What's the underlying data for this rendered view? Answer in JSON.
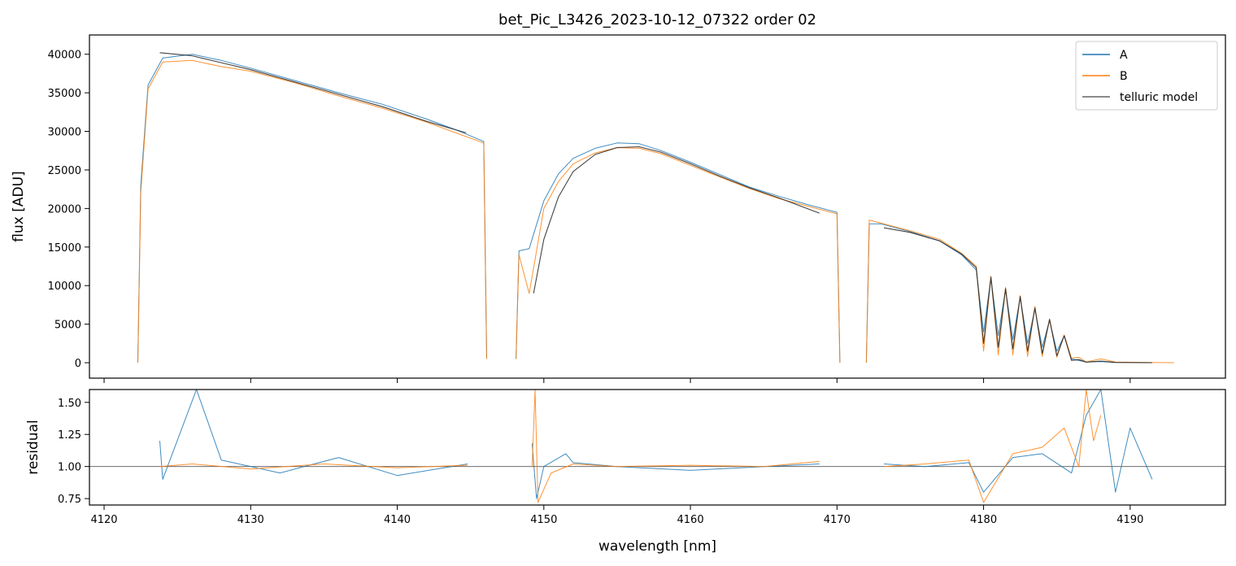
{
  "chart_data": [
    {
      "type": "line",
      "title": "bet_Pic_L3426_2023-10-12_07322  order 02",
      "ylabel": "flux [ADU]",
      "xlabel": "",
      "xlim": [
        4119.0,
        4196.5
      ],
      "ylim": [
        -2000,
        42500
      ],
      "xticks": [
        4120,
        4130,
        4140,
        4150,
        4160,
        4170,
        4180,
        4190
      ],
      "yticks": [
        0,
        5000,
        10000,
        15000,
        20000,
        25000,
        30000,
        35000,
        40000
      ],
      "ytick_labels": [
        "0",
        "5000",
        "10000",
        "15000",
        "20000",
        "25000",
        "30000",
        "35000",
        "40000"
      ],
      "legend": {
        "placement": "top-right",
        "entries": [
          "A",
          "B",
          "telluric model"
        ]
      },
      "series": [
        {
          "name": "A",
          "color": "#1f77b4",
          "segments": [
            {
              "x": [
                4122.3,
                4122.5,
                4123.0,
                4124.0,
                4126.0,
                4128.0,
                4130.0,
                4133.0,
                4136.0,
                4139.0,
                4142.0,
                4144.0,
                4145.9,
                4146.1
              ],
              "y": [
                0,
                23000,
                36000,
                39500,
                40000,
                39200,
                38200,
                36600,
                35000,
                33500,
                31600,
                30200,
                28700,
                500
              ]
            },
            {
              "x": [
                4148.1,
                4148.3,
                4149.0,
                4150.0,
                4151.0,
                4152.0,
                4153.5,
                4155.0,
                4156.5,
                4158.0,
                4160.0,
                4162.0,
                4164.0,
                4166.0,
                4168.0,
                4170.0,
                4170.2
              ],
              "y": [
                500,
                14500,
                14800,
                21000,
                24500,
                26500,
                27800,
                28500,
                28400,
                27500,
                26000,
                24400,
                22800,
                21600,
                20500,
                19500,
                0
              ]
            },
            {
              "x": [
                4172.0,
                4172.2,
                4173.0,
                4175.0,
                4177.0,
                4178.5,
                4179.5,
                4180.0,
                4180.5,
                4181.0,
                4181.5,
                4182.0,
                4182.5,
                4183.0,
                4183.5,
                4184.0,
                4184.5,
                4185.0,
                4185.5,
                4186.0,
                4186.5,
                4187.0,
                4188.0,
                4189.0,
                4190.0,
                4191.5
              ],
              "y": [
                0,
                18000,
                18000,
                17000,
                15800,
                14000,
                12000,
                4000,
                11000,
                3500,
                9500,
                3000,
                8500,
                2500,
                7000,
                2000,
                5500,
                1500,
                3500,
                500,
                300,
                100,
                150,
                50,
                50,
                0
              ]
            }
          ]
        },
        {
          "name": "B",
          "color": "#ff7f0e",
          "segments": [
            {
              "x": [
                4122.3,
                4122.5,
                4123.0,
                4124.0,
                4126.0,
                4128.0,
                4130.0,
                4133.0,
                4136.0,
                4139.0,
                4142.0,
                4144.0,
                4145.9,
                4146.1
              ],
              "y": [
                0,
                22000,
                35500,
                39000,
                39200,
                38400,
                37800,
                36300,
                34600,
                33000,
                31200,
                29800,
                28500,
                500
              ]
            },
            {
              "x": [
                4148.1,
                4148.3,
                4149.0,
                4150.0,
                4151.0,
                4152.0,
                4153.5,
                4155.0,
                4156.5,
                4158.0,
                4160.0,
                4162.0,
                4164.0,
                4166.0,
                4168.0,
                4170.0,
                4170.2
              ],
              "y": [
                500,
                14000,
                9000,
                20000,
                23500,
                25800,
                27200,
                27900,
                27800,
                27100,
                25600,
                24100,
                22600,
                21300,
                20300,
                19300,
                0
              ]
            },
            {
              "x": [
                4172.0,
                4172.2,
                4173.0,
                4175.0,
                4177.0,
                4178.5,
                4179.5,
                4180.0,
                4180.5,
                4181.0,
                4181.5,
                4182.0,
                4182.5,
                4183.0,
                4183.5,
                4184.0,
                4184.5,
                4185.0,
                4185.5,
                4186.0,
                4186.5,
                4187.0,
                4188.0,
                4189.0,
                4190.0,
                4193.0
              ],
              "y": [
                0,
                18500,
                18100,
                17100,
                16000,
                14200,
                12500,
                1500,
                11200,
                1000,
                9800,
                1000,
                8700,
                800,
                7300,
                800,
                5700,
                700,
                3600,
                600,
                700,
                100,
                500,
                80,
                60,
                0
              ]
            }
          ]
        },
        {
          "name": "telluric model",
          "color": "#222222",
          "segments": [
            {
              "x": [
                4123.8,
                4126.0,
                4128.0,
                4130.0,
                4133.0,
                4136.0,
                4139.0,
                4142.0,
                4144.7
              ],
              "y": [
                40200,
                39800,
                38900,
                38000,
                36400,
                34800,
                33200,
                31300,
                29800
              ]
            },
            {
              "x": [
                4149.3,
                4150.0,
                4151.0,
                4152.0,
                4153.5,
                4155.0,
                4156.5,
                4158.0,
                4160.0,
                4162.0,
                4164.0,
                4166.0,
                4168.8
              ],
              "y": [
                9000,
                16000,
                21500,
                24800,
                27000,
                27900,
                28000,
                27300,
                25800,
                24200,
                22700,
                21400,
                19400
              ]
            },
            {
              "x": [
                4173.2,
                4175.0,
                4177.0,
                4178.5,
                4179.5,
                4180.0,
                4180.5,
                4181.0,
                4181.5,
                4182.0,
                4182.5,
                4183.0,
                4183.5,
                4184.0,
                4184.5,
                4185.0,
                4185.5,
                4186.0,
                4186.5,
                4187.0,
                4188.0,
                4189.0,
                4191.5
              ],
              "y": [
                17500,
                16900,
                15800,
                14100,
                12300,
                2500,
                11100,
                2000,
                9600,
                1800,
                8600,
                1500,
                7100,
                1200,
                5600,
                900,
                3500,
                300,
                400,
                80,
                200,
                40,
                0
              ]
            }
          ]
        }
      ]
    },
    {
      "type": "line",
      "title": "",
      "ylabel": "residual",
      "xlabel": "wavelength [nm]",
      "xlim": [
        4119.0,
        4196.5
      ],
      "ylim": [
        0.7,
        1.6
      ],
      "xticks": [
        4120,
        4130,
        4140,
        4150,
        4160,
        4170,
        4180,
        4190
      ],
      "yticks": [
        0.75,
        1.0,
        1.25,
        1.5
      ],
      "ytick_labels": [
        "0.75",
        "1.00",
        "1.25",
        "1.50"
      ],
      "reference_line": 1.0,
      "series": [
        {
          "name": "A",
          "color": "#1f77b4",
          "segments": [
            {
              "x": [
                4123.8,
                4124.0,
                4126.3,
                4128.0,
                4132.0,
                4136.0,
                4140.0,
                4144.8
              ],
              "y": [
                1.2,
                0.9,
                1.6,
                1.05,
                0.95,
                1.07,
                0.93,
                1.02
              ]
            },
            {
              "x": [
                4149.2,
                4149.5,
                4150.0,
                4151.5,
                4152.0,
                4155.0,
                4160.0,
                4165.0,
                4168.8
              ],
              "y": [
                1.18,
                0.75,
                1.0,
                1.1,
                1.03,
                1.0,
                0.97,
                1.0,
                1.02
              ]
            },
            {
              "x": [
                4173.2,
                4176.0,
                4179.0,
                4180.0,
                4182.0,
                4184.0,
                4186.0,
                4187.0,
                4188.0,
                4189.0,
                4190.0,
                4191.5
              ],
              "y": [
                1.02,
                1.0,
                1.03,
                0.8,
                1.07,
                1.1,
                0.95,
                1.4,
                1.6,
                0.8,
                1.3,
                0.9
              ]
            }
          ]
        },
        {
          "name": "B",
          "color": "#ff7f0e",
          "segments": [
            {
              "x": [
                4123.8,
                4126.0,
                4130.0,
                4135.0,
                4140.0,
                4144.8
              ],
              "y": [
                1.0,
                1.02,
                0.98,
                1.02,
                0.99,
                1.01
              ]
            },
            {
              "x": [
                4149.2,
                4149.4,
                4149.6,
                4150.5,
                4152.0,
                4155.0,
                4160.0,
                4165.0,
                4168.8
              ],
              "y": [
                1.0,
                1.6,
                0.72,
                0.95,
                1.02,
                1.0,
                1.01,
                1.0,
                1.04
              ]
            },
            {
              "x": [
                4173.2,
                4176.0,
                4179.0,
                4180.0,
                4182.0,
                4184.0,
                4185.5,
                4186.5,
                4187.0,
                4187.5,
                4188.0
              ],
              "y": [
                1.0,
                1.02,
                1.05,
                0.72,
                1.1,
                1.15,
                1.3,
                1.0,
                1.6,
                1.2,
                1.4
              ]
            }
          ]
        }
      ]
    }
  ]
}
